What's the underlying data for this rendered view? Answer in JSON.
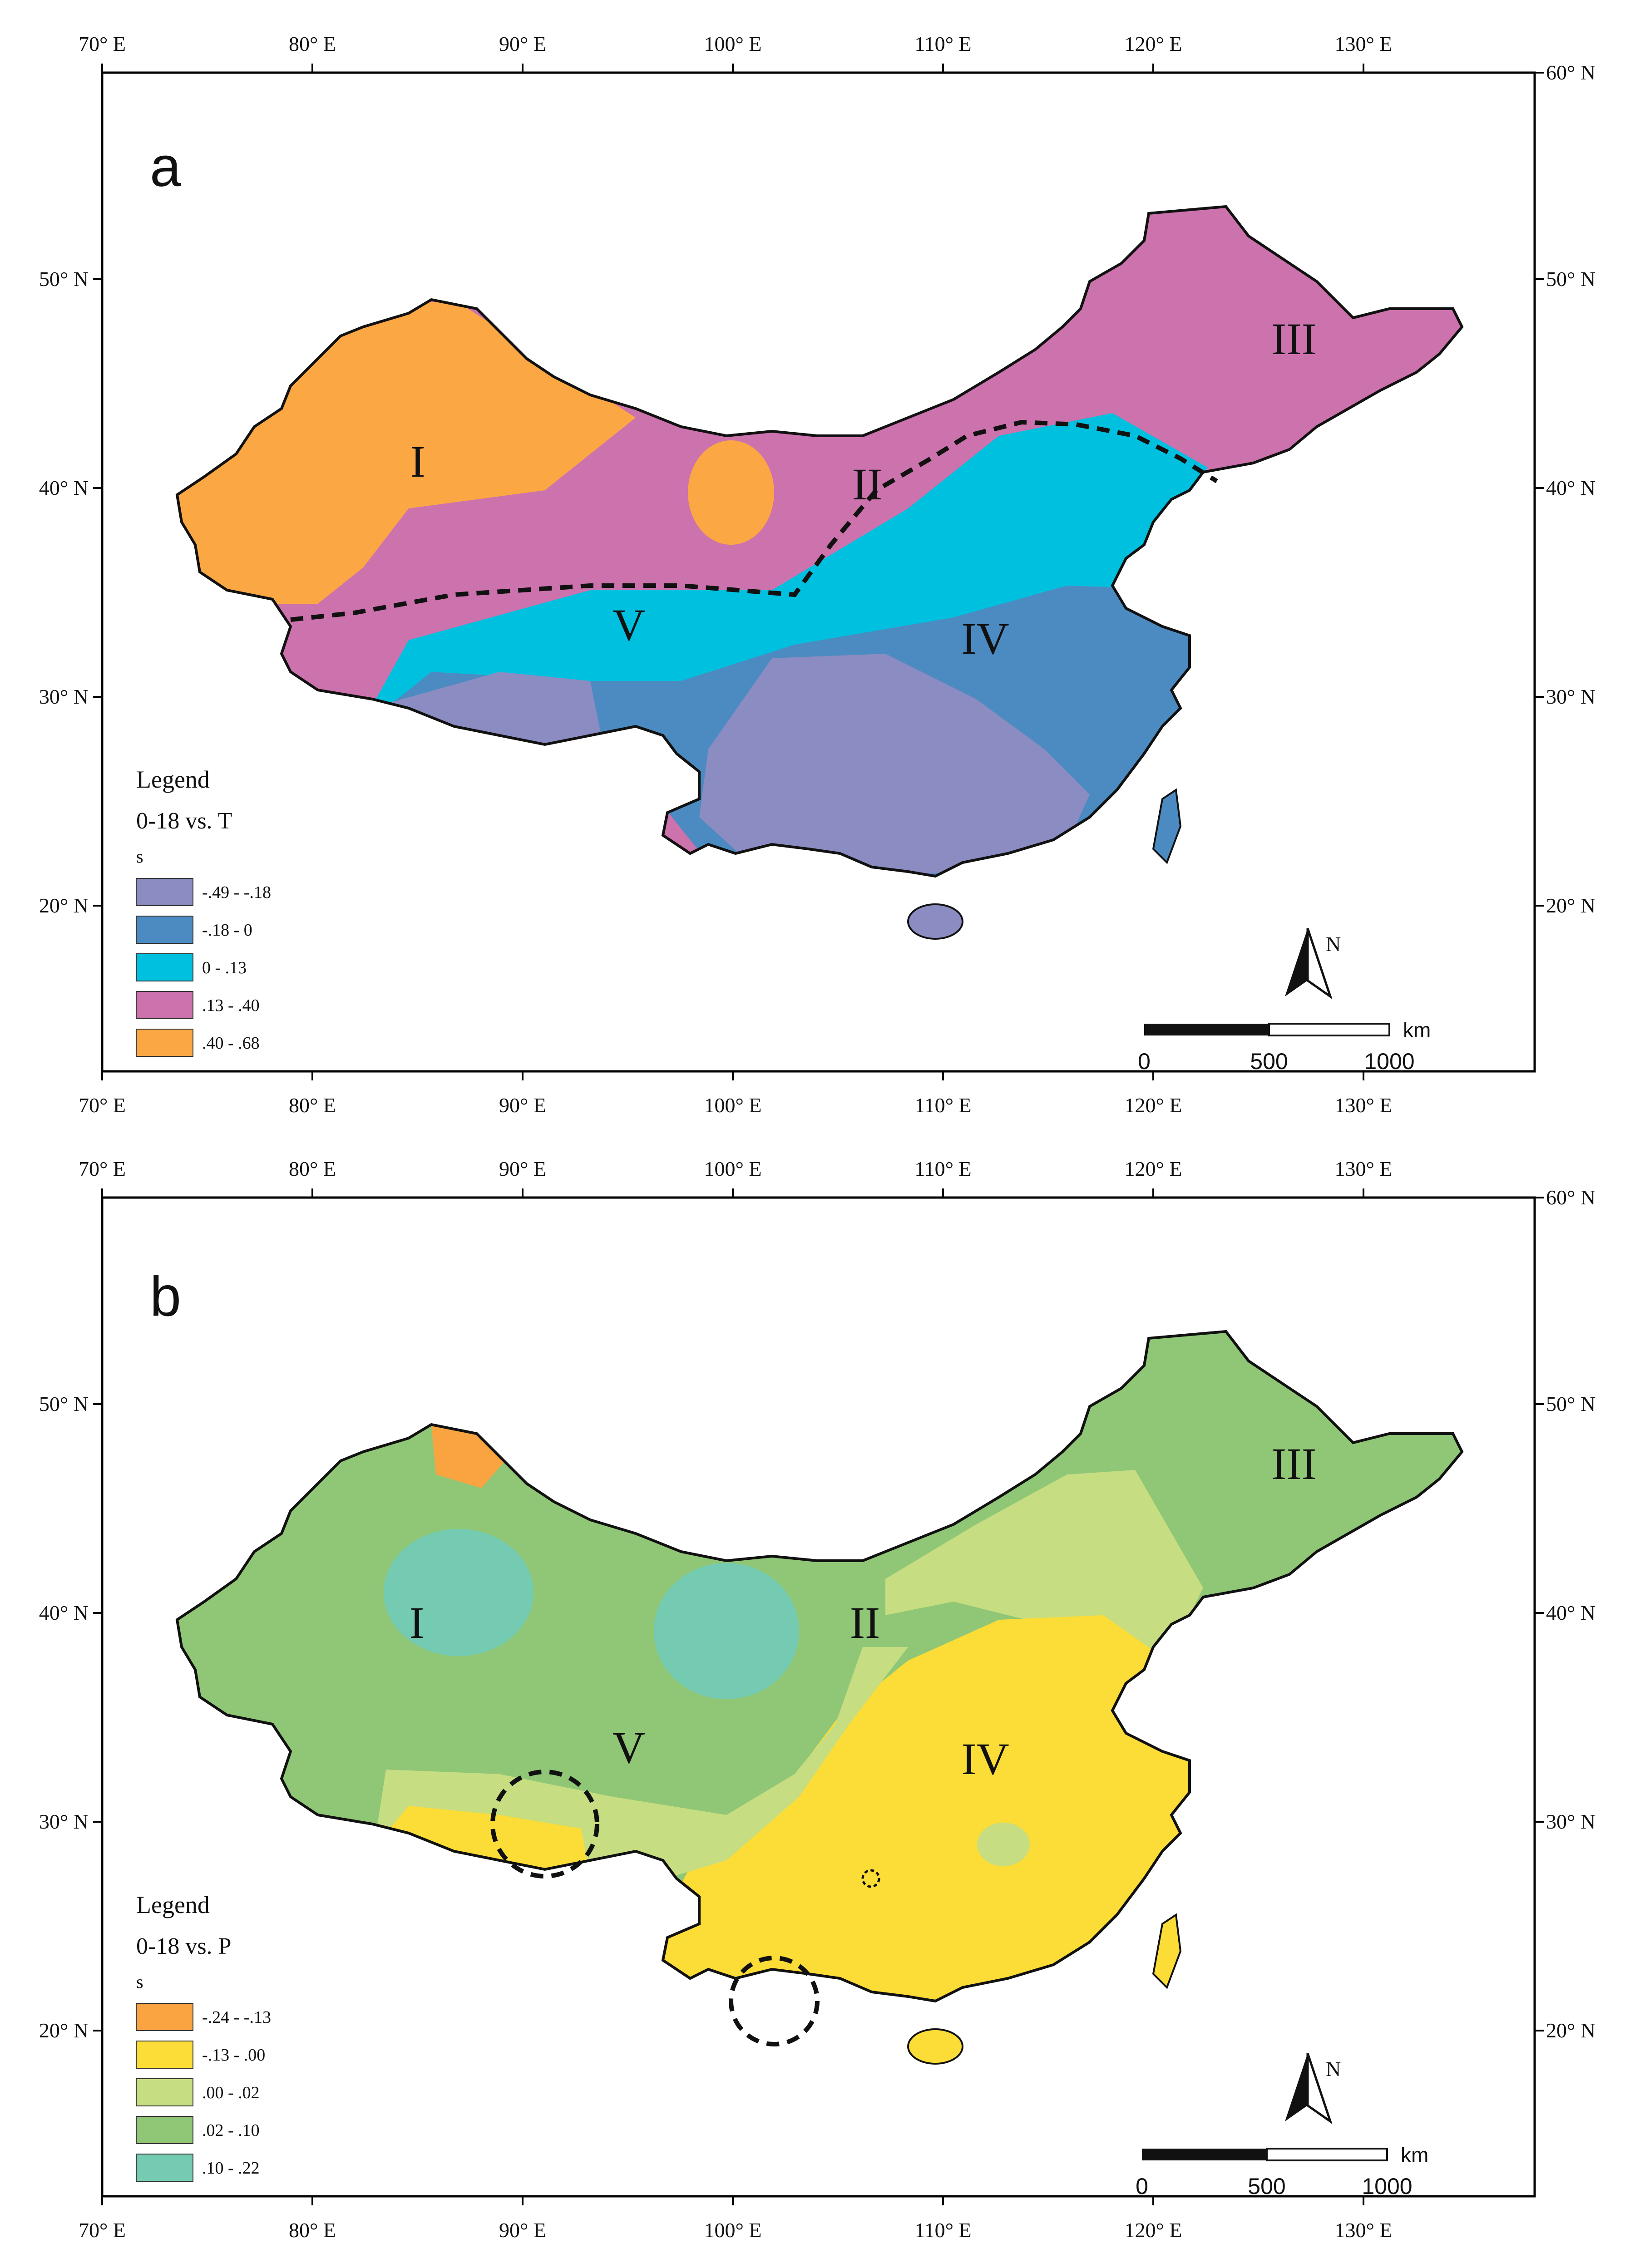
{
  "axis": {
    "top_lon": [
      "70° E",
      "80° E",
      "90° E",
      "100° E",
      "110° E",
      "120° E",
      "130° E"
    ],
    "left_lat": [
      "50° N",
      "40° N",
      "30° N",
      "20° N"
    ],
    "right_lat": [
      "60° N",
      "50° N",
      "40° N",
      "30° N",
      "20° N"
    ]
  },
  "panels": [
    {
      "label": "a",
      "legend": {
        "title": "Legend",
        "subtitle": "0-18  vs. T",
        "field": "s",
        "classes": [
          {
            "label": "-.49 - -.18",
            "color": "#8a8cc2"
          },
          {
            "label": "-.18 - 0",
            "color": "#4b8bc1"
          },
          {
            "label": "0 - .13",
            "color": "#00c0e0"
          },
          {
            "label": ".13 - .40",
            "color": "#cc72ad"
          },
          {
            "label": ".40 - .68",
            "color": "#fba844"
          }
        ]
      },
      "regions": [
        "I",
        "II",
        "III",
        "IV",
        "V"
      ],
      "north": "N",
      "scale": {
        "unit": "km",
        "ticks": [
          "0",
          "500",
          "1000"
        ]
      }
    },
    {
      "label": "b",
      "legend": {
        "title": "Legend",
        "subtitle": "0-18  vs.  P",
        "field": "s",
        "classes": [
          {
            "label": "-.24 - -.13",
            "color": "#f9a440"
          },
          {
            "label": "-.13 - .00",
            "color": "#fcdc36"
          },
          {
            "label": ".00 - .02",
            "color": "#c6dd82"
          },
          {
            "label": ".02 - .10",
            "color": "#90c776"
          },
          {
            "label": ".10 - .22",
            "color": "#74cbb2"
          }
        ]
      },
      "regions": [
        "I",
        "II",
        "III",
        "IV",
        "V"
      ],
      "north": "N",
      "scale": {
        "unit": "km",
        "ticks": [
          "0",
          "500",
          "1000"
        ]
      }
    }
  ]
}
